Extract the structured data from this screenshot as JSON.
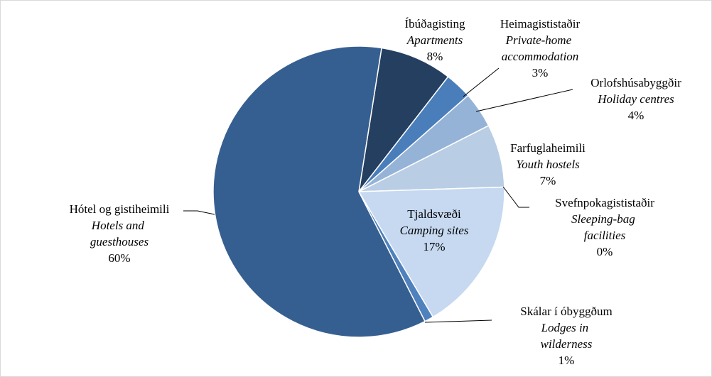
{
  "chart_data": {
    "type": "pie",
    "categories": [
      "Íbúðagisting",
      "Heimagististaðir",
      "Orlofshúsabyggðir",
      "Farfuglaheimili",
      "Svefnpokagististaðir",
      "Tjaldsvæði",
      "Skálar í óbyggðum",
      "Hótel og gistiheimili"
    ],
    "categories_en": [
      "Apartments",
      "Private-home accommodation",
      "Holiday centres",
      "Youth hostels",
      "Sleeping-bag facilities",
      "Camping sites",
      "Lodges in wilderness",
      "Hotels and guesthouses"
    ],
    "values": [
      8,
      3,
      4,
      7,
      0,
      17,
      1,
      60
    ],
    "value_labels": [
      "8%",
      "3%",
      "4%",
      "7%",
      "0%",
      "17%",
      "1%",
      "60%"
    ],
    "colors": [
      "#243f60",
      "#4a7ebb",
      "#95b3d7",
      "#b9cde5",
      "#c6d9f1",
      "#c6d9f1",
      "#4f81bd",
      "#365f91"
    ]
  }
}
